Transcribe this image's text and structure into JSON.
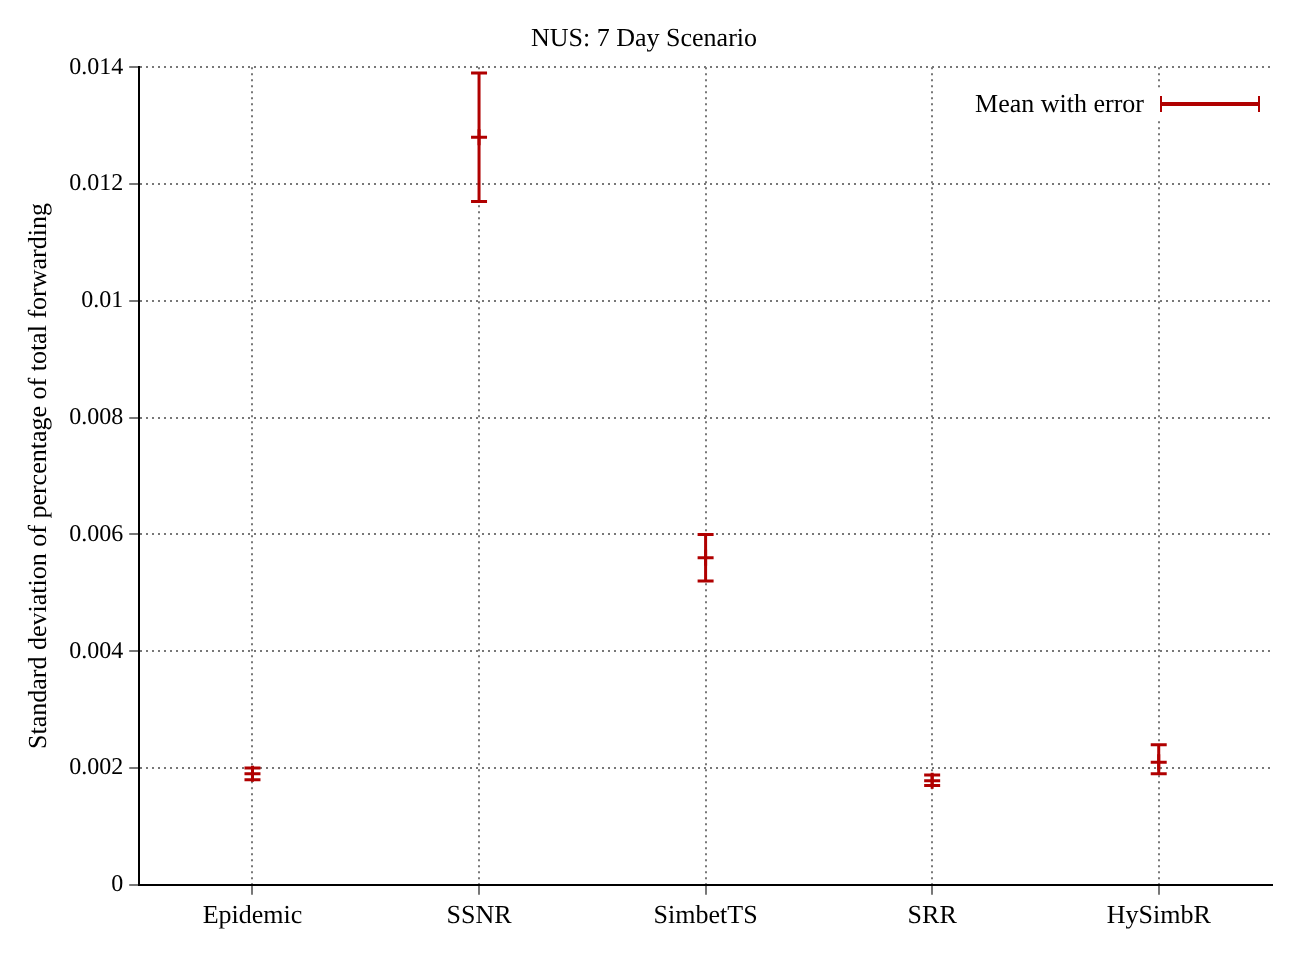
{
  "chart_data": {
    "type": "scatter",
    "title": "NUS: 7 Day Scenario",
    "ylabel": "Standard deviation of percentage of total forwarding",
    "categories": [
      "Epidemic",
      "SSNR",
      "SimbetTS",
      "SRR",
      "HySimbR"
    ],
    "series": [
      {
        "name": "Mean with error",
        "color": "#b00000",
        "values": [
          0.0019,
          0.0128,
          0.0056,
          0.00178,
          0.0021
        ],
        "errors": [
          [
            0.0018,
            0.002
          ],
          [
            0.0117,
            0.0139
          ],
          [
            0.0052,
            0.006
          ],
          [
            0.0017,
            0.00188
          ],
          [
            0.0019,
            0.0024
          ]
        ]
      }
    ],
    "ylim": [
      0,
      0.014
    ],
    "yticks": [
      0,
      0.002,
      0.004,
      0.006,
      0.008,
      0.01,
      0.012,
      0.014
    ],
    "grid": true,
    "legend": "top right",
    "marker": "cross"
  }
}
